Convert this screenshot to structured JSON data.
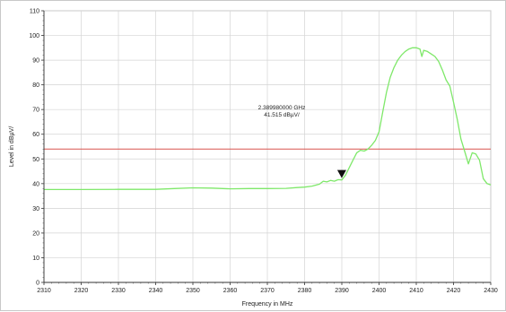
{
  "chart_data": {
    "type": "line",
    "xlabel": "Frequency in MHz",
    "ylabel": "Level in dBµV/",
    "xlim": [
      2310,
      2430
    ],
    "ylim": [
      0,
      110
    ],
    "x_ticks": [
      2310,
      2320,
      2330,
      2340,
      2350,
      2360,
      2370,
      2380,
      2390,
      2400,
      2410,
      2420,
      2430
    ],
    "y_ticks": [
      0,
      10,
      20,
      30,
      40,
      50,
      60,
      70,
      80,
      90,
      100,
      110
    ],
    "grid": true,
    "limit_line": {
      "value": 54,
      "color": "#d9534f"
    },
    "marker": {
      "x": 2389.98,
      "y": 41.515,
      "label_freq": "2.389980000 GHz",
      "label_level": "41.515 dBµV/"
    },
    "series": [
      {
        "color": "#7fe86a",
        "x": [
          2310,
          2320,
          2330,
          2340,
          2345,
          2350,
          2355,
          2360,
          2365,
          2370,
          2375,
          2378,
          2380,
          2382,
          2384,
          2385,
          2386,
          2387,
          2388,
          2389,
          2390,
          2391,
          2392,
          2393,
          2394,
          2395,
          2396,
          2397,
          2398,
          2399,
          2400,
          2401,
          2402,
          2403,
          2404,
          2405,
          2406,
          2407,
          2408,
          2409,
          2410,
          2411,
          2411.5,
          2412,
          2413,
          2414,
          2415,
          2416,
          2417,
          2418,
          2419,
          2420,
          2421,
          2422,
          2423,
          2424,
          2425,
          2426,
          2427,
          2428,
          2429,
          2430
        ],
        "y": [
          37.6,
          37.6,
          37.7,
          37.7,
          38.0,
          38.3,
          38.2,
          37.9,
          38.0,
          38.0,
          38.1,
          38.4,
          38.6,
          39.0,
          39.8,
          41.0,
          40.7,
          41.3,
          41.0,
          41.6,
          41.5,
          43.5,
          46.5,
          49.5,
          52.5,
          53.5,
          53.2,
          54.0,
          55.5,
          57.5,
          61.0,
          69.0,
          77.0,
          83.0,
          87.0,
          90.0,
          92.0,
          93.5,
          94.5,
          95.0,
          95.0,
          94.5,
          91.5,
          94.0,
          93.5,
          92.5,
          91.5,
          89.5,
          86.0,
          82.0,
          79.5,
          73.0,
          66.0,
          58.0,
          53.0,
          48.0,
          52.5,
          52.0,
          49.5,
          42.0,
          40.0,
          39.5
        ]
      }
    ]
  }
}
